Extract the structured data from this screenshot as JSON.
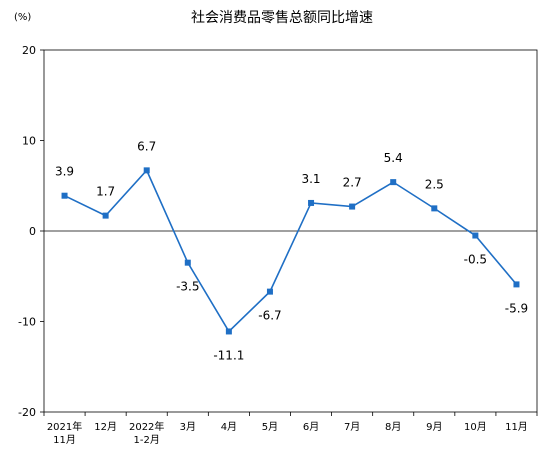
{
  "chart_data": {
    "type": "line",
    "title": "社会消费品零售总额同比增速",
    "unit_label": "(%)",
    "xlabel": "",
    "ylabel": "",
    "ylim": [
      -20,
      20
    ],
    "yticks": [
      20,
      10,
      0,
      -10,
      -20
    ],
    "grid": false,
    "categories": [
      [
        "2021年",
        "11月"
      ],
      [
        "12月"
      ],
      [
        "2022年",
        "1-2月"
      ],
      [
        "3月"
      ],
      [
        "4月"
      ],
      [
        "5月"
      ],
      [
        "6月"
      ],
      [
        "7月"
      ],
      [
        "8月"
      ],
      [
        "9月"
      ],
      [
        "10月"
      ],
      [
        "11月"
      ]
    ],
    "values": [
      3.9,
      1.7,
      6.7,
      -3.5,
      -11.1,
      -6.7,
      3.1,
      2.7,
      5.4,
      2.5,
      -0.5,
      -5.9
    ],
    "data_labels": [
      "3.9",
      "1.7",
      "6.7",
      "-3.5",
      "-11.1",
      "-6.7",
      "3.1",
      "2.7",
      "5.4",
      "2.5",
      "-0.5",
      "-5.9"
    ],
    "series_color": "#1f6fc5"
  }
}
